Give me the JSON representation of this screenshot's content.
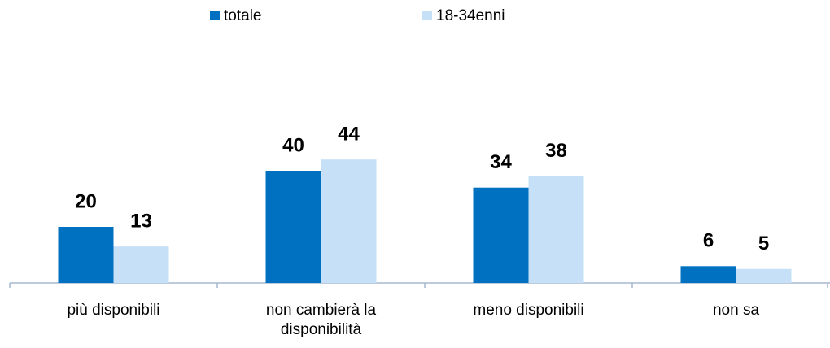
{
  "chart_data": {
    "type": "bar",
    "categories": [
      "più disponibili",
      "non cambierà la disponibilità",
      "meno disponibili",
      "non sa"
    ],
    "series": [
      {
        "name": "totale",
        "color": "#0070c0",
        "values": [
          20,
          40,
          34,
          6
        ]
      },
      {
        "name": "18-34enni",
        "color": "#c6e0f8",
        "values": [
          13,
          44,
          38,
          5
        ]
      }
    ],
    "legend": "top"
  }
}
